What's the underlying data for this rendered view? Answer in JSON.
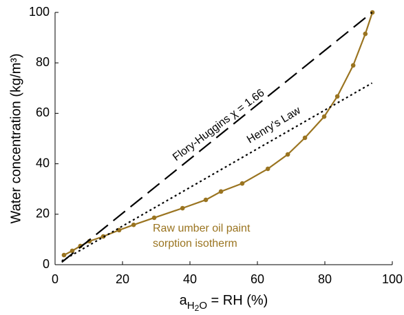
{
  "chart_data": {
    "type": "line",
    "xlabel": [
      "a",
      "H",
      "2",
      "O",
      " = RH (%)"
    ],
    "ylabel": "Water concentration (kg/m³)",
    "xlim": [
      0,
      100
    ],
    "xticks": [
      0,
      20,
      40,
      60,
      80,
      100
    ],
    "ylim": [
      0,
      100
    ],
    "yticks": [
      0,
      20,
      40,
      60,
      80,
      100
    ],
    "series": [
      {
        "color": "#9a7420",
        "style": "solid",
        "markers": true,
        "x": [
          2.65,
          5.1,
          7.5,
          10.2,
          14.3,
          19.0,
          23.3,
          29.4,
          37.8,
          44.7,
          49.2,
          55.5,
          63.1,
          69.0,
          74.1,
          79.8,
          83.7,
          88.4,
          92.0,
          94.1
        ],
        "values": [
          3.8,
          5.5,
          7.4,
          9.3,
          11.2,
          13.7,
          15.8,
          18.6,
          22.4,
          25.7,
          29.0,
          32.2,
          38.0,
          43.7,
          50.3,
          58.7,
          66.7,
          79.0,
          91.5,
          100
        ]
      },
      {
        "color": "#000000",
        "style": "dashed",
        "markers": false,
        "x": [
          2,
          94
        ],
        "values": [
          1,
          100
        ]
      },
      {
        "color": "#000000",
        "style": "dotted",
        "markers": false,
        "x": [
          2,
          94
        ],
        "values": [
          1.5,
          72
        ]
      }
    ],
    "annotations": [
      "Flory-Huggins  χ = 1.66",
      "Henry's Law",
      "Raw umber oil paint",
      "sorption isotherm"
    ]
  }
}
